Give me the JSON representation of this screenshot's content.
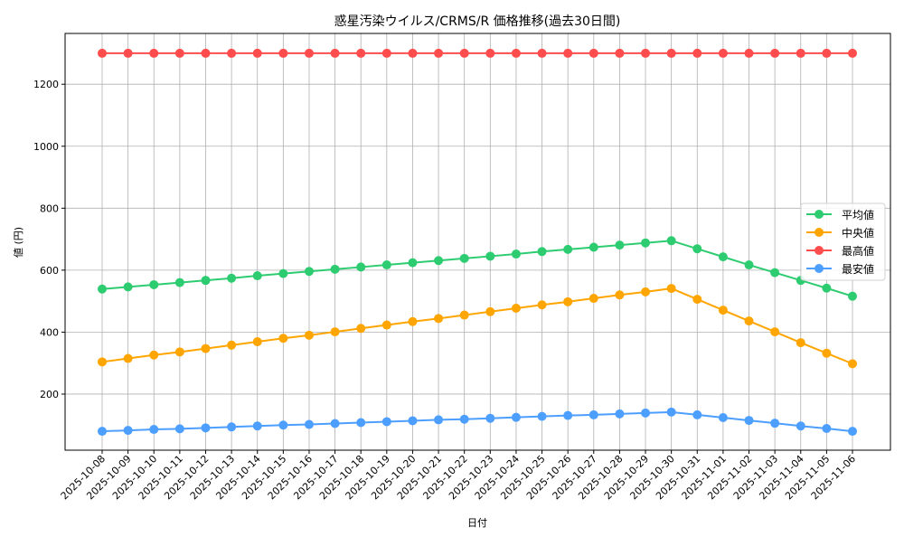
{
  "chart_data": {
    "type": "line",
    "title": "惑星汚染ウイルス/CRMS/R 価格推移(過去30日間)",
    "xlabel": "日付",
    "ylabel": "値 (円)",
    "ylim": [
      19,
      1364
    ],
    "yticks": [
      200,
      400,
      600,
      800,
      1000,
      1200
    ],
    "grid": true,
    "legend_position": "center right",
    "categories": [
      "2025-10-08",
      "2025-10-09",
      "2025-10-10",
      "2025-10-11",
      "2025-10-12",
      "2025-10-13",
      "2025-10-14",
      "2025-10-15",
      "2025-10-16",
      "2025-10-17",
      "2025-10-18",
      "2025-10-19",
      "2025-10-20",
      "2025-10-21",
      "2025-10-22",
      "2025-10-23",
      "2025-10-24",
      "2025-10-25",
      "2025-10-26",
      "2025-10-27",
      "2025-10-28",
      "2025-10-29",
      "2025-10-30",
      "2025-10-31",
      "2025-11-01",
      "2025-11-02",
      "2025-11-03",
      "2025-11-04",
      "2025-11-05",
      "2025-11-06"
    ],
    "series": [
      {
        "name": "平均値",
        "color": "#2ecc71",
        "values": [
          539,
          546,
          553,
          560,
          567,
          574,
          582,
          589,
          596,
          603,
          610,
          617,
          624,
          631,
          638,
          645,
          652,
          660,
          667,
          674,
          681,
          688,
          695,
          669,
          643,
          617,
          592,
          567,
          542,
          516
        ]
      },
      {
        "name": "中央値",
        "color": "#ffa500",
        "values": [
          304,
          315,
          326,
          336,
          347,
          358,
          369,
          380,
          390,
          401,
          412,
          423,
          434,
          444,
          455,
          466,
          477,
          488,
          498,
          509,
          520,
          530,
          541,
          506,
          471,
          436,
          401,
          366,
          332,
          298
        ]
      },
      {
        "name": "最高値",
        "color": "#ff4d4d",
        "values": [
          1300,
          1300,
          1300,
          1300,
          1300,
          1300,
          1300,
          1300,
          1300,
          1300,
          1300,
          1300,
          1300,
          1300,
          1300,
          1300,
          1300,
          1300,
          1300,
          1300,
          1300,
          1300,
          1300,
          1300,
          1300,
          1300,
          1300,
          1300,
          1300,
          1300
        ]
      },
      {
        "name": "最安値",
        "color": "#4d9fff",
        "values": [
          80,
          83,
          86,
          88,
          91,
          94,
          97,
          100,
          102,
          105,
          108,
          111,
          114,
          117,
          119,
          122,
          125,
          128,
          131,
          133,
          136,
          139,
          142,
          133,
          124,
          115,
          106,
          97,
          89,
          80
        ]
      }
    ]
  }
}
